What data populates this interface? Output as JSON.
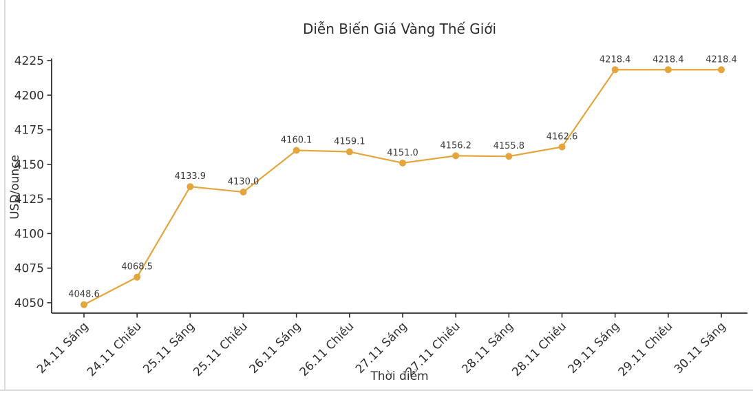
{
  "page": {
    "background": "#ffffff",
    "edge_line_color": "#d9dce0"
  },
  "chart_data": {
    "type": "line",
    "title": "Diễn Biến Giá Vàng Thế Giới",
    "xlabel": "Thời điểm",
    "ylabel": "USD/ounce",
    "categories": [
      "24.11 Sáng",
      "24.11 Chiều",
      "25.11 Sáng",
      "25.11 Chiều",
      "26.11 Sáng",
      "26.11 Chiều",
      "27.11 Sáng",
      "27.11 Chiều",
      "28.11 Sáng",
      "28.11 Chiều",
      "29.11 Sáng",
      "29.11 Chiều",
      "30.11 Sáng"
    ],
    "values": [
      4048.6,
      4068.5,
      4133.9,
      4130.0,
      4160.1,
      4159.1,
      4151.0,
      4156.2,
      4155.8,
      4162.6,
      4218.4,
      4218.4,
      4218.4
    ],
    "point_labels": [
      "4048.6",
      "4068.5",
      "4133.9",
      "4130.0",
      "4160.1",
      "4159.1",
      "4151.0",
      "4156.2",
      "4155.8",
      "4162.6",
      "4218.4",
      "4218.4",
      "4218.4"
    ],
    "y_ticks": [
      4050,
      4075,
      4100,
      4125,
      4150,
      4175,
      4200,
      4225
    ],
    "ylim": [
      4042.5,
      4226.0
    ],
    "grid": false,
    "legend": "none",
    "marker": "circle",
    "line_color": "#E3A53C",
    "axis_color": "#2b2b2b",
    "tick_text_color": "#2e2e2e",
    "point_label_color": "#3a3a3a"
  }
}
